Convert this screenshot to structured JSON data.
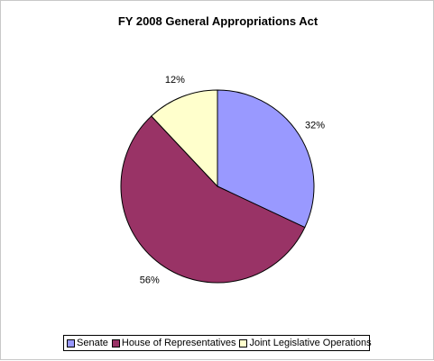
{
  "chart_data": {
    "type": "pie",
    "title": "FY 2008 General Appropriations Act",
    "slices": [
      {
        "label": "Senate",
        "value": 32,
        "value_label": "32%",
        "color": "#9999ff"
      },
      {
        "label": "House of Representatives",
        "value": 56,
        "value_label": "56%",
        "color": "#993366"
      },
      {
        "label": "Joint Legislative Operations",
        "value": 12,
        "value_label": "12%",
        "color": "#ffffcc"
      }
    ],
    "legend_position": "bottom"
  }
}
